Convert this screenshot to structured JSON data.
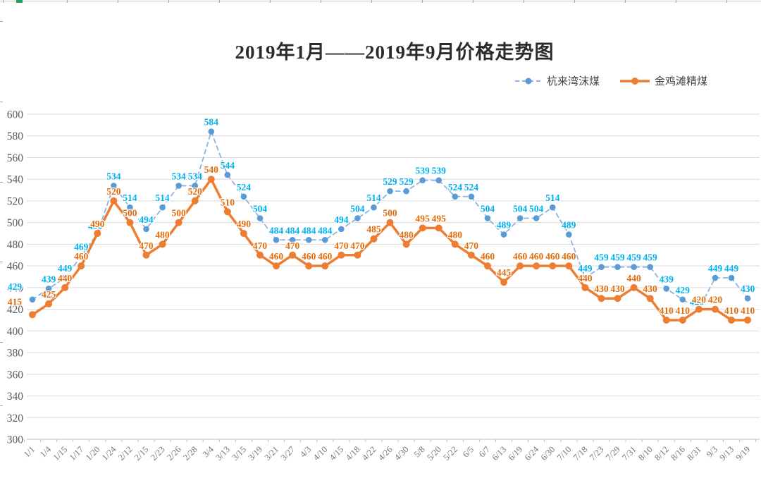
{
  "chart_data": {
    "type": "line",
    "title": "2019年1月——2019年9月价格走势图",
    "categories": [
      "1/1",
      "1/4",
      "1/15",
      "1/17",
      "1/20",
      "1/24",
      "2/12",
      "2/15",
      "2/23",
      "2/26",
      "2/28",
      "3/4",
      "3/13",
      "3/15",
      "3/19",
      "3/21",
      "3/27",
      "4/3",
      "4/10",
      "4/15",
      "4/18",
      "4/22",
      "4/26",
      "4/30",
      "5/8",
      "5/20",
      "5/22",
      "6/5",
      "6/7",
      "6/13",
      "6/19",
      "6/24",
      "6/30",
      "7/10",
      "7/18",
      "7/23",
      "7/29",
      "7/31",
      "8/10",
      "8/12",
      "8/16",
      "8/31",
      "9/3",
      "9/13",
      "9/19"
    ],
    "series": [
      {
        "name": "杭来湾沫煤",
        "style": "dashed",
        "marker_color": "#5B9BD5",
        "line_color": "#8EB4E3",
        "label_color": "#00B0F0",
        "values": [
          429,
          439,
          449,
          469,
          490,
          534,
          514,
          494,
          514,
          534,
          534,
          584,
          544,
          524,
          504,
          484,
          484,
          484,
          484,
          494,
          504,
          514,
          529,
          529,
          539,
          539,
          524,
          524,
          504,
          489,
          504,
          504,
          514,
          489,
          449,
          459,
          459,
          459,
          459,
          439,
          429,
          420,
          449,
          449,
          430
        ]
      },
      {
        "name": "金鸡滩精煤",
        "style": "solid",
        "marker_color": "#ED7D31",
        "line_color": "#ED7D31",
        "label_color": "#E36C0A",
        "values": [
          415,
          425,
          440,
          460,
          490,
          520,
          500,
          470,
          480,
          500,
          520,
          540,
          510,
          490,
          470,
          460,
          470,
          460,
          460,
          470,
          470,
          485,
          500,
          480,
          495,
          495,
          480,
          470,
          460,
          445,
          460,
          460,
          460,
          460,
          440,
          430,
          430,
          440,
          430,
          410,
          410,
          420,
          420,
          410,
          410
        ]
      }
    ],
    "ylim": [
      300,
      600
    ],
    "y_tick_step": 20,
    "y_ticks": [
      300,
      320,
      340,
      360,
      380,
      400,
      420,
      440,
      460,
      480,
      500,
      520,
      540,
      560,
      580,
      600
    ],
    "grid": true,
    "legend_position": "top-right",
    "colors": {
      "gridline": "#D9D9D9",
      "axis_line": "#BFBFBF",
      "y_label": "#595959",
      "x_label": "#757575",
      "background": "#FFFFFF"
    }
  }
}
